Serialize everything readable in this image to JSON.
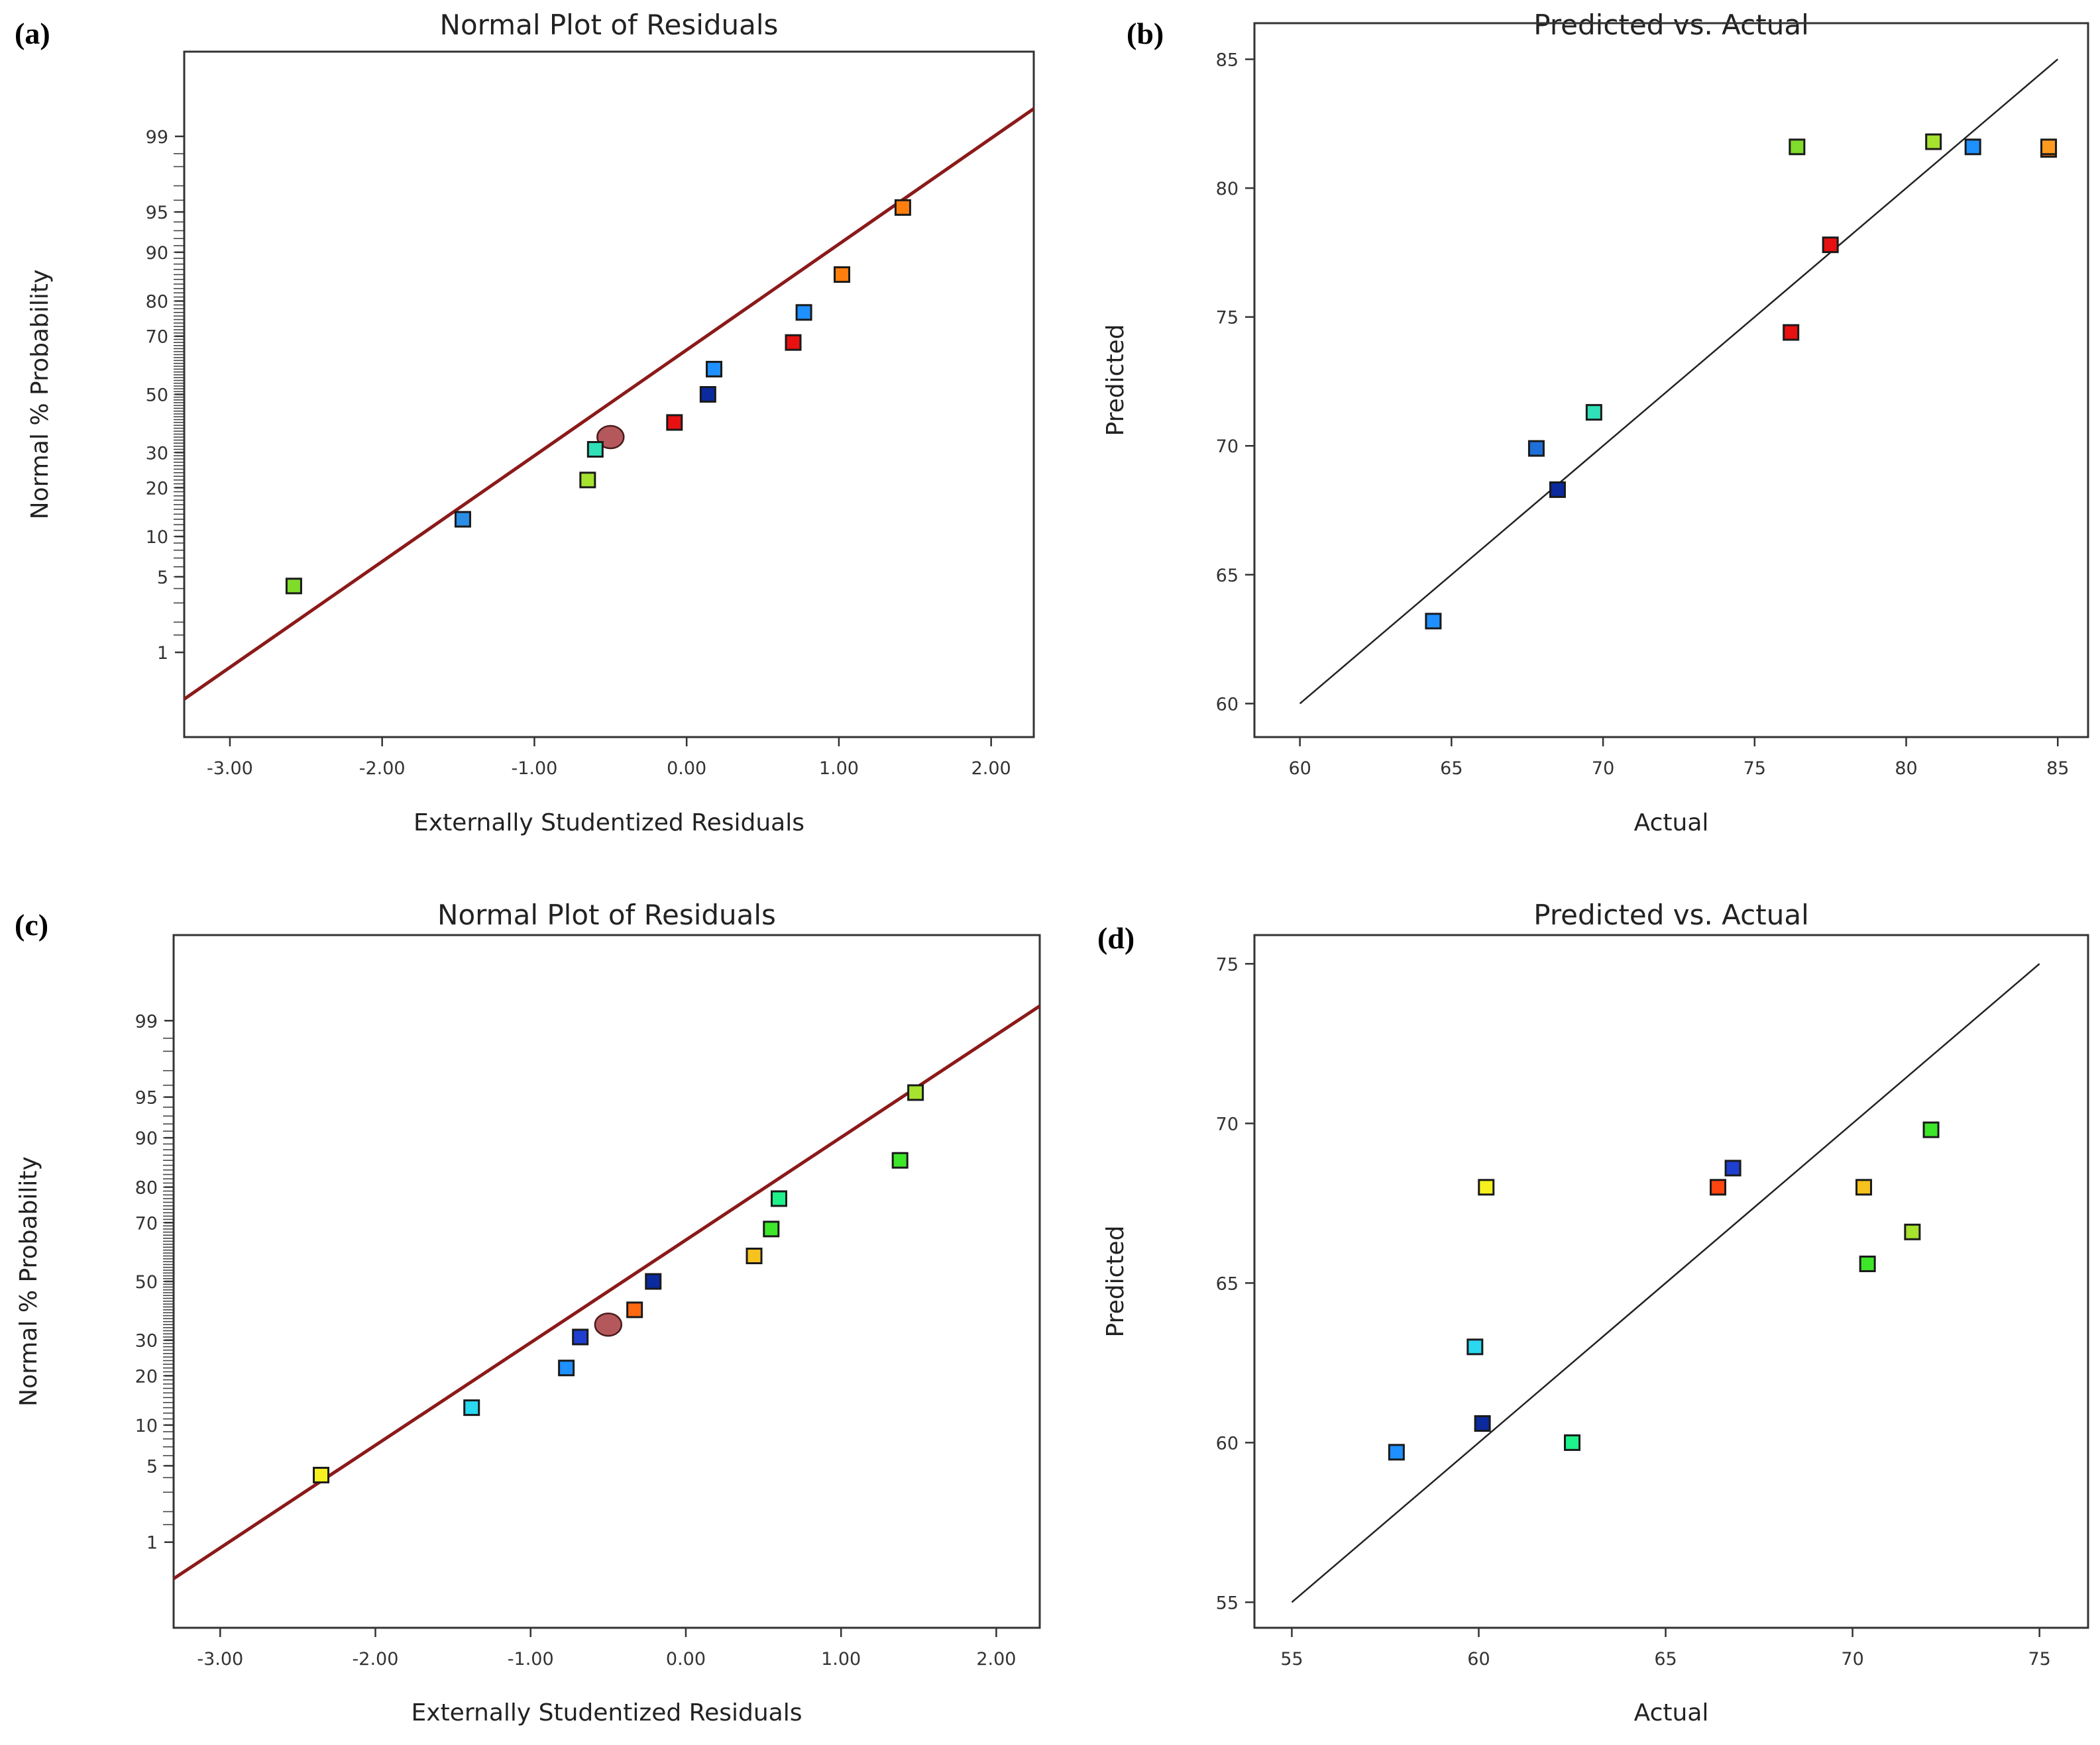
{
  "chart_data": [
    {
      "panel": "(a)",
      "type": "scatter",
      "title": "Normal Plot of Residuals",
      "xlabel": "Externally Studentized Residuals",
      "ylabel": "Normal % Probability",
      "xlim": [
        -3.3,
        2.28
      ],
      "ylim_percent": [
        0.1,
        99.9
      ],
      "y_scale": "normal-probability",
      "x_ticks": [
        -3.0,
        -2.0,
        -1.0,
        0.0,
        1.0,
        2.0
      ],
      "x_tick_labels": [
        "-3.00",
        "-2.00",
        "-1.00",
        "0.00",
        "1.00",
        "2.00"
      ],
      "y_ticks": [
        1,
        5,
        10,
        20,
        30,
        50,
        70,
        80,
        90,
        95,
        99
      ],
      "y_tick_labels": [
        "1",
        "5",
        "10",
        "20",
        "30",
        "50",
        "70",
        "80",
        "90",
        "95",
        "99"
      ],
      "reference_line": {
        "x": [
          -3.3,
          2.28
        ],
        "y": [
          0.3,
          99.5
        ],
        "color": "#8b1a1a"
      },
      "highlight_point": {
        "x": -0.5,
        "y": 35,
        "color": "#b5585c"
      },
      "points": [
        {
          "x": -2.58,
          "y": 4.2,
          "color": "#7fdc2a"
        },
        {
          "x": -1.47,
          "y": 13,
          "color": "#2a8ee6"
        },
        {
          "x": -0.65,
          "y": 22,
          "color": "#a6e22e"
        },
        {
          "x": -0.6,
          "y": 31,
          "color": "#2fe0b8"
        },
        {
          "x": -0.08,
          "y": 40,
          "color": "#e81010"
        },
        {
          "x": 0.14,
          "y": 50,
          "color": "#0a2a9e"
        },
        {
          "x": 0.18,
          "y": 59,
          "color": "#1e90ff"
        },
        {
          "x": 0.7,
          "y": 68,
          "color": "#e81010"
        },
        {
          "x": 0.77,
          "y": 77,
          "color": "#1e90ff"
        },
        {
          "x": 1.02,
          "y": 86,
          "color": "#ff7f0e"
        },
        {
          "x": 1.42,
          "y": 95.4,
          "color": "#ff7f0e"
        }
      ]
    },
    {
      "panel": "(b)",
      "type": "scatter",
      "title": "Predicted vs. Actual",
      "xlabel": "Actual",
      "ylabel": "Predicted",
      "xlim": [
        58.5,
        86.0
      ],
      "ylim": [
        58.7,
        86.4
      ],
      "x_ticks": [
        60,
        65,
        70,
        75,
        80,
        85
      ],
      "x_tick_labels": [
        "60",
        "65",
        "70",
        "75",
        "80",
        "85"
      ],
      "y_ticks": [
        60,
        65,
        70,
        75,
        80,
        85
      ],
      "y_tick_labels": [
        "60",
        "65",
        "70",
        "75",
        "80",
        "85"
      ],
      "reference_line": {
        "x": [
          60,
          85
        ],
        "y": [
          60,
          85
        ],
        "color": "#222222"
      },
      "points": [
        {
          "x": 64.4,
          "y": 63.2,
          "color": "#1e90ff"
        },
        {
          "x": 67.8,
          "y": 69.9,
          "color": "#1e6fd9"
        },
        {
          "x": 68.5,
          "y": 68.3,
          "color": "#0a2a9e"
        },
        {
          "x": 69.7,
          "y": 71.3,
          "color": "#2fe0b8"
        },
        {
          "x": 76.2,
          "y": 74.4,
          "color": "#e81010"
        },
        {
          "x": 76.4,
          "y": 81.6,
          "color": "#7fdc2a"
        },
        {
          "x": 77.5,
          "y": 77.8,
          "color": "#e81010"
        },
        {
          "x": 80.9,
          "y": 81.8,
          "color": "#a6e22e"
        },
        {
          "x": 82.2,
          "y": 81.6,
          "color": "#1e90ff"
        },
        {
          "x": 84.7,
          "y": 81.5,
          "color": "#ff7f0e"
        },
        {
          "x": 84.7,
          "y": 81.6,
          "color": "#ff9a1e"
        }
      ]
    },
    {
      "panel": "(c)",
      "type": "scatter",
      "title": "Normal Plot of Residuals",
      "xlabel": "Externally Studentized Residuals",
      "ylabel": "Normal % Probability",
      "xlim": [
        -3.3,
        2.28
      ],
      "ylim_percent": [
        0.1,
        99.9
      ],
      "y_scale": "normal-probability",
      "x_ticks": [
        -3.0,
        -2.0,
        -1.0,
        0.0,
        1.0,
        2.0
      ],
      "x_tick_labels": [
        "-3.00",
        "-2.00",
        "-1.00",
        "0.00",
        "1.00",
        "2.00"
      ],
      "y_ticks": [
        1,
        5,
        10,
        20,
        30,
        50,
        70,
        80,
        90,
        95,
        99
      ],
      "y_tick_labels": [
        "1",
        "5",
        "10",
        "20",
        "30",
        "50",
        "70",
        "80",
        "90",
        "95",
        "99"
      ],
      "reference_line": {
        "x": [
          -3.3,
          2.28
        ],
        "y": [
          0.4,
          99.3
        ],
        "color": "#8b1a1a"
      },
      "highlight_point": {
        "x": -0.5,
        "y": 35,
        "color": "#b5585c"
      },
      "points": [
        {
          "x": -2.35,
          "y": 4.2,
          "color": "#f5f01e"
        },
        {
          "x": -1.38,
          "y": 13,
          "color": "#2ad8f0"
        },
        {
          "x": -0.77,
          "y": 22,
          "color": "#1e90ff"
        },
        {
          "x": -0.68,
          "y": 31,
          "color": "#1e3fd0"
        },
        {
          "x": -0.33,
          "y": 40,
          "color": "#ff6a10"
        },
        {
          "x": -0.21,
          "y": 50,
          "color": "#0a2a9e"
        },
        {
          "x": 0.44,
          "y": 59,
          "color": "#f5c21e"
        },
        {
          "x": 0.55,
          "y": 68,
          "color": "#3ee62a"
        },
        {
          "x": 0.6,
          "y": 77,
          "color": "#1ef08a"
        },
        {
          "x": 1.38,
          "y": 86,
          "color": "#3ee62a"
        },
        {
          "x": 1.48,
          "y": 95.4,
          "color": "#a6e22e"
        }
      ]
    },
    {
      "panel": "(d)",
      "type": "scatter",
      "title": "Predicted vs. Actual",
      "xlabel": "Actual",
      "ylabel": "Predicted",
      "xlim": [
        54.0,
        76.3
      ],
      "ylim": [
        54.2,
        75.9
      ],
      "x_ticks": [
        55,
        60,
        65,
        70,
        75
      ],
      "x_tick_labels": [
        "55",
        "60",
        "65",
        "70",
        "75"
      ],
      "y_ticks": [
        55,
        60,
        65,
        70,
        75
      ],
      "y_tick_labels": [
        "55",
        "60",
        "65",
        "70",
        "75"
      ],
      "reference_line": {
        "x": [
          55,
          75
        ],
        "y": [
          55,
          75
        ],
        "color": "#222222"
      },
      "points": [
        {
          "x": 57.8,
          "y": 59.7,
          "color": "#1e90ff"
        },
        {
          "x": 59.9,
          "y": 63.0,
          "color": "#2ad8f0"
        },
        {
          "x": 60.1,
          "y": 60.6,
          "color": "#0a2a9e"
        },
        {
          "x": 60.2,
          "y": 68.0,
          "color": "#f5f01e"
        },
        {
          "x": 62.5,
          "y": 60.0,
          "color": "#1ef08a"
        },
        {
          "x": 66.4,
          "y": 68.0,
          "color": "#ff4510"
        },
        {
          "x": 66.8,
          "y": 68.6,
          "color": "#1e3fd0"
        },
        {
          "x": 70.3,
          "y": 68.0,
          "color": "#f5c21e"
        },
        {
          "x": 70.4,
          "y": 65.6,
          "color": "#3ee62a"
        },
        {
          "x": 71.6,
          "y": 66.6,
          "color": "#a6e22e"
        },
        {
          "x": 72.1,
          "y": 69.8,
          "color": "#3ee62a"
        }
      ]
    }
  ]
}
